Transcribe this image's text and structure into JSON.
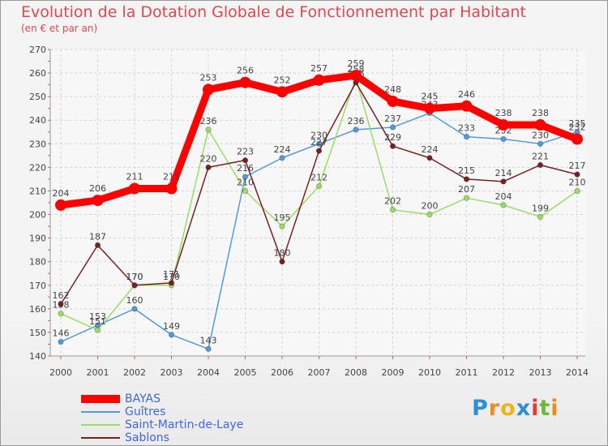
{
  "chart_data": {
    "type": "line",
    "title": "Evolution de la Dotation Globale de Fonctionnement par Habitant",
    "subtitle": "(en € et par an)",
    "x": [
      2000,
      2001,
      2002,
      2003,
      2004,
      2005,
      2006,
      2007,
      2008,
      2009,
      2010,
      2011,
      2012,
      2013,
      2014
    ],
    "ylim": [
      140,
      270
    ],
    "yticks": [
      140,
      150,
      160,
      170,
      180,
      190,
      200,
      210,
      220,
      230,
      240,
      250,
      260,
      270
    ],
    "grid": true,
    "series": [
      {
        "name": "BAYAS",
        "color": "#ff0000",
        "values": [
          204,
          206,
          211,
          211,
          253,
          256,
          252,
          257,
          259,
          248,
          245,
          246,
          238,
          238,
          232
        ]
      },
      {
        "name": "Guîtres",
        "color": "#5599dd",
        "values": [
          146,
          153,
          160,
          149,
          143,
          216,
          224,
          230,
          236,
          237,
          243,
          233,
          232,
          230,
          235
        ]
      },
      {
        "name": "Saint-Martin-de-Laye",
        "color": "#99dd66",
        "values": [
          158,
          151,
          170,
          170,
          236,
          210,
          195,
          212,
          258,
          202,
          200,
          207,
          204,
          199,
          210
        ]
      },
      {
        "name": "Sablons",
        "color": "#772222",
        "values": [
          162,
          187,
          170,
          171,
          220,
          223,
          180,
          227,
          256,
          229,
          224,
          215,
          214,
          221,
          217
        ]
      }
    ]
  },
  "legend": {
    "items": [
      {
        "label": "BAYAS",
        "color": "#ff0000"
      },
      {
        "label": "Guîtres",
        "color": "#5599dd"
      },
      {
        "label": "Saint-Martin-de-Laye",
        "color": "#99dd66"
      },
      {
        "label": "Sablons",
        "color": "#772222"
      }
    ]
  },
  "logo": {
    "letters": [
      "P",
      "r",
      "o",
      "x",
      "i",
      "t",
      "i"
    ],
    "colors": [
      "#2a8fd8",
      "#f08a1c",
      "#f0b419",
      "#2a8fd8",
      "#e8392f",
      "#6cb83b",
      "#f08a1c"
    ]
  }
}
